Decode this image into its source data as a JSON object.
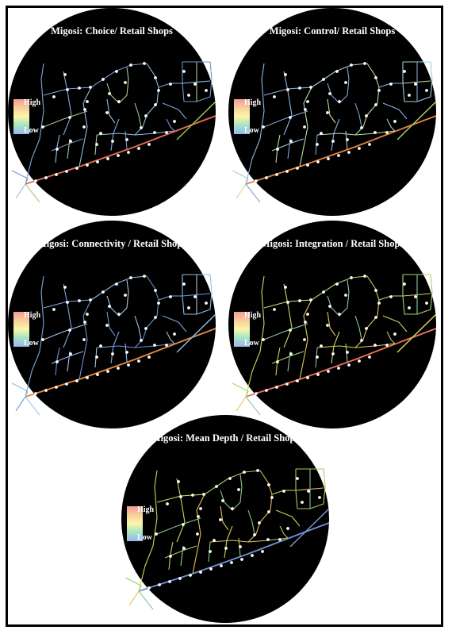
{
  "panels": [
    {
      "title": "Migosi: Choice/ Retail Shops",
      "legend_high": "High",
      "legend_low": "Low",
      "palette": "choice"
    },
    {
      "title": "Migosi: Control/ Retail Shops",
      "legend_high": "High",
      "legend_low": "Low",
      "palette": "control"
    },
    {
      "title": "Migosi: Connectivity / Retail Shops",
      "legend_high": "High",
      "legend_low": "Low",
      "palette": "connectivity"
    },
    {
      "title": "Migosi: Integration / Retail Shops",
      "legend_high": "High",
      "legend_low": "Low",
      "palette": "integration"
    },
    {
      "title": "Migosi: Mean Depth / Retail Shops",
      "legend_high": "High",
      "legend_low": "Low",
      "palette": "meandepth"
    }
  ],
  "colors": {
    "background": "#000000",
    "shop_marker": "#ffffff",
    "legend_high": "#f49a9a",
    "legend_mid": "#fbf6a8",
    "legend_low": "#9ab7ef"
  }
}
